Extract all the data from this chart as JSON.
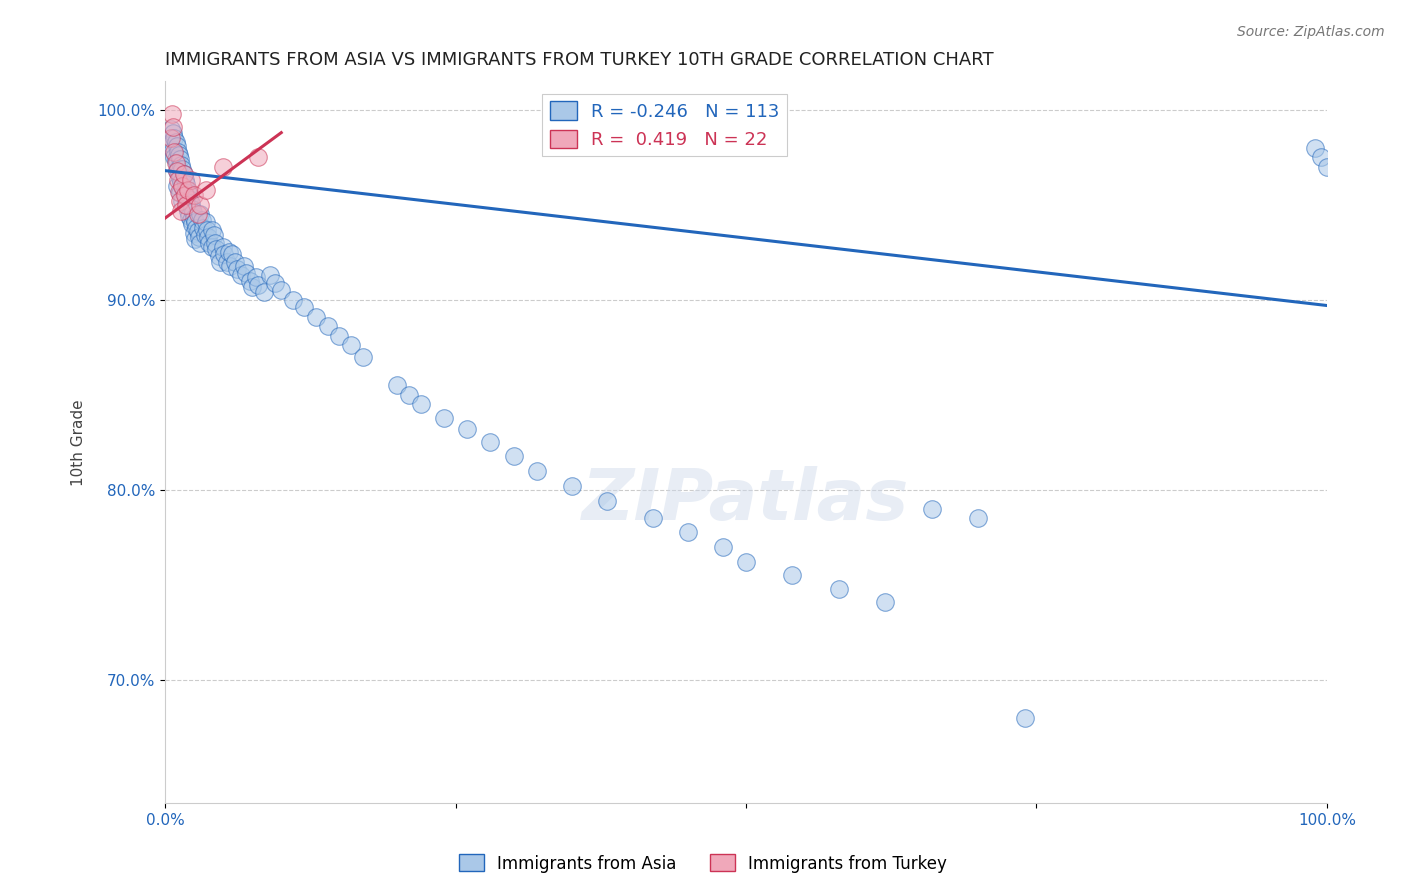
{
  "title": "IMMIGRANTS FROM ASIA VS IMMIGRANTS FROM TURKEY 10TH GRADE CORRELATION CHART",
  "source_text": "Source: ZipAtlas.com",
  "ylabel": "10th Grade",
  "xlim": [
    0.0,
    1.0
  ],
  "ylim": [
    0.635,
    1.015
  ],
  "yticks": [
    0.7,
    0.8,
    0.9,
    1.0
  ],
  "ytick_labels": [
    "70.0%",
    "80.0%",
    "90.0%",
    "100.0%"
  ],
  "xticks": [
    0.0,
    0.25,
    0.5,
    0.75,
    1.0
  ],
  "xtick_labels": [
    "0.0%",
    "",
    "",
    "",
    "100.0%"
  ],
  "blue_R": -0.246,
  "blue_N": 113,
  "pink_R": 0.419,
  "pink_N": 22,
  "blue_color": "#aac8e8",
  "pink_color": "#f0a8ba",
  "blue_line_color": "#2266bb",
  "pink_line_color": "#cc3355",
  "legend_blue_label": "Immigrants from Asia",
  "legend_pink_label": "Immigrants from Turkey",
  "blue_scatter_x": [
    0.005,
    0.005,
    0.007,
    0.007,
    0.008,
    0.008,
    0.009,
    0.009,
    0.01,
    0.01,
    0.01,
    0.01,
    0.011,
    0.011,
    0.012,
    0.012,
    0.013,
    0.013,
    0.013,
    0.014,
    0.014,
    0.015,
    0.015,
    0.015,
    0.016,
    0.016,
    0.017,
    0.017,
    0.018,
    0.018,
    0.019,
    0.019,
    0.02,
    0.02,
    0.021,
    0.021,
    0.022,
    0.022,
    0.023,
    0.023,
    0.024,
    0.025,
    0.025,
    0.026,
    0.026,
    0.027,
    0.028,
    0.029,
    0.03,
    0.03,
    0.032,
    0.033,
    0.034,
    0.035,
    0.036,
    0.037,
    0.038,
    0.04,
    0.04,
    0.042,
    0.043,
    0.044,
    0.046,
    0.047,
    0.05,
    0.051,
    0.053,
    0.055,
    0.056,
    0.058,
    0.06,
    0.062,
    0.065,
    0.068,
    0.07,
    0.073,
    0.075,
    0.078,
    0.08,
    0.085,
    0.09,
    0.095,
    0.1,
    0.11,
    0.12,
    0.13,
    0.14,
    0.15,
    0.16,
    0.17,
    0.2,
    0.21,
    0.22,
    0.24,
    0.26,
    0.28,
    0.3,
    0.32,
    0.35,
    0.38,
    0.42,
    0.45,
    0.48,
    0.5,
    0.54,
    0.58,
    0.62,
    0.66,
    0.7,
    0.74,
    0.99,
    0.995,
    1.0
  ],
  "blue_scatter_y": [
    0.99,
    0.982,
    0.988,
    0.979,
    0.985,
    0.975,
    0.983,
    0.974,
    0.981,
    0.972,
    0.968,
    0.96,
    0.978,
    0.969,
    0.976,
    0.967,
    0.974,
    0.964,
    0.956,
    0.971,
    0.962,
    0.969,
    0.96,
    0.952,
    0.966,
    0.957,
    0.963,
    0.955,
    0.961,
    0.952,
    0.958,
    0.95,
    0.956,
    0.947,
    0.953,
    0.944,
    0.951,
    0.942,
    0.948,
    0.94,
    0.946,
    0.943,
    0.935,
    0.941,
    0.932,
    0.938,
    0.936,
    0.933,
    0.93,
    0.945,
    0.942,
    0.938,
    0.934,
    0.941,
    0.937,
    0.933,
    0.93,
    0.937,
    0.928,
    0.934,
    0.93,
    0.927,
    0.923,
    0.92,
    0.928,
    0.924,
    0.92,
    0.925,
    0.918,
    0.924,
    0.92,
    0.916,
    0.913,
    0.918,
    0.914,
    0.91,
    0.907,
    0.912,
    0.908,
    0.904,
    0.913,
    0.909,
    0.905,
    0.9,
    0.896,
    0.891,
    0.886,
    0.881,
    0.876,
    0.87,
    0.855,
    0.85,
    0.845,
    0.838,
    0.832,
    0.825,
    0.818,
    0.81,
    0.802,
    0.794,
    0.785,
    0.778,
    0.77,
    0.762,
    0.755,
    0.748,
    0.741,
    0.79,
    0.785,
    0.68,
    0.98,
    0.975,
    0.97
  ],
  "pink_scatter_x": [
    0.005,
    0.006,
    0.007,
    0.008,
    0.009,
    0.01,
    0.011,
    0.012,
    0.013,
    0.014,
    0.015,
    0.016,
    0.017,
    0.018,
    0.02,
    0.022,
    0.025,
    0.028,
    0.03,
    0.035,
    0.05,
    0.08
  ],
  "pink_scatter_y": [
    0.985,
    0.998,
    0.991,
    0.978,
    0.972,
    0.968,
    0.963,
    0.957,
    0.952,
    0.947,
    0.96,
    0.966,
    0.955,
    0.95,
    0.958,
    0.963,
    0.955,
    0.945,
    0.95,
    0.958,
    0.97,
    0.975
  ],
  "blue_trend_x": [
    0.0,
    1.0
  ],
  "blue_trend_y": [
    0.968,
    0.897
  ],
  "pink_trend_x": [
    0.0,
    0.1
  ],
  "pink_trend_y": [
    0.943,
    0.988
  ],
  "watermark_text": "ZIPatlas",
  "background_color": "#ffffff",
  "grid_color": "#cccccc",
  "title_fontsize": 13,
  "axis_label_fontsize": 11,
  "tick_fontsize": 11,
  "source_fontsize": 10
}
